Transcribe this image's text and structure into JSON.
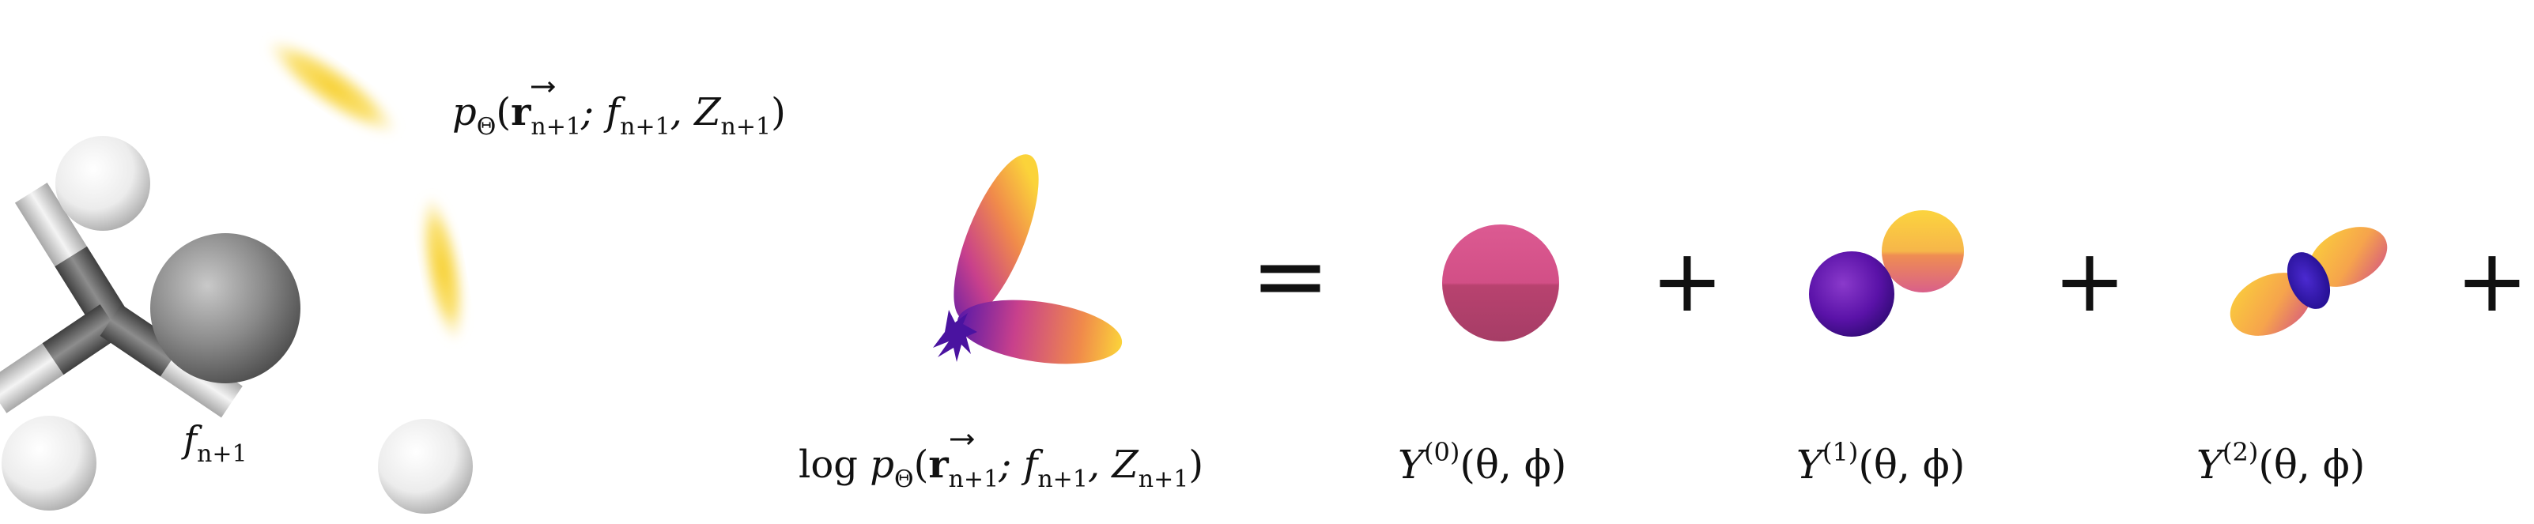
{
  "molecule": {
    "focus_atom_label": {
      "base": "f",
      "sub": "n+1"
    },
    "density_label": {
      "p": "p",
      "theta": "Θ",
      "r": "r",
      "rsub": "n+1",
      "rest": "; f",
      "fsub": "n+1",
      "z": ", Z",
      "zsub": "n+1",
      "close": ")"
    }
  },
  "equation": {
    "lhs_label": {
      "log": "log ",
      "p": "p",
      "theta": "Θ",
      "r": "r",
      "rsub": "n+1",
      "f": "; f",
      "fsub": "n+1",
      "z": ", Z",
      "zsub": "n+1",
      "close": ")"
    },
    "equals": "=",
    "plus": "+",
    "terms": [
      {
        "base": "Y",
        "sup": "(0)",
        "args": "(θ, ϕ)"
      },
      {
        "base": "Y",
        "sup": "(1)",
        "args": "(θ, ϕ)"
      },
      {
        "base": "Y",
        "sup": "(2)",
        "args": "(θ, ϕ)"
      }
    ]
  },
  "colors": {
    "atom_gray": "#7d7d7d",
    "hydrogen_white": "#f2f2f2",
    "density_yellow": "#f7d43a",
    "lobe_yellow": "#fbd33a",
    "lobe_orange": "#f08a4b",
    "lobe_magenta": "#c8408c",
    "lobe_purple": "#4a13a0",
    "sphere_pink": "#d24f86"
  }
}
